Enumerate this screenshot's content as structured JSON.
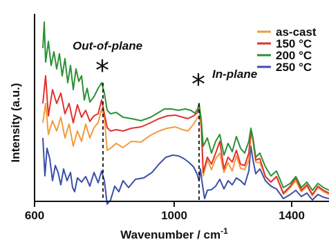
{
  "chart_data": {
    "type": "line",
    "xlabel": "Wavenumber / cm",
    "xlabel_sup": "-1",
    "ylabel": "Intensity (a.u.)",
    "xlim": [
      600,
      1500
    ],
    "x_ticks": [
      {
        "value": 600,
        "label": "600"
      },
      {
        "value": 1000,
        "label": "1000"
      },
      {
        "value": 1400,
        "label": "1400"
      }
    ],
    "y_ticks": "none",
    "grid": false,
    "legend_position": "top-right",
    "annotations": [
      {
        "text": "Out-of-plane",
        "marker": "*",
        "x": 810
      },
      {
        "text": "In-plane",
        "marker": "*",
        "x": 1110
      }
    ],
    "series": [
      {
        "name": "as-cast",
        "color": "#f39a3b"
      },
      {
        "name": "150 °C",
        "color": "#e1312d"
      },
      {
        "name": "200 °C",
        "color": "#2a9135"
      },
      {
        "name": "250 °C",
        "color": "#3b4ea8"
      }
    ]
  }
}
